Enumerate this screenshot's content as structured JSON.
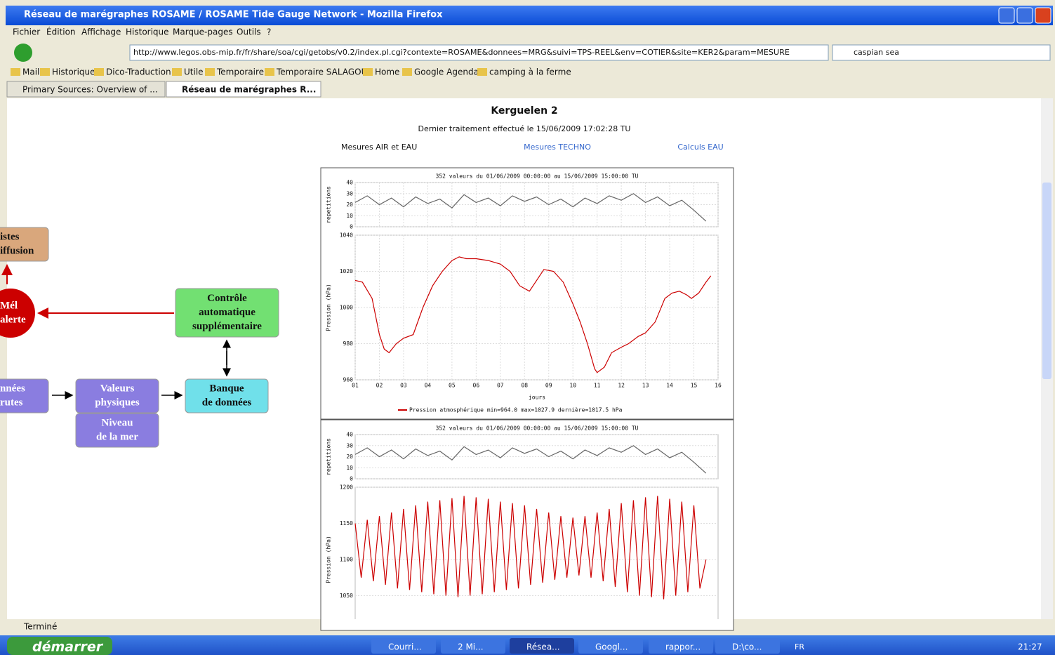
{
  "window": {
    "title": "Réseau de marégraphes ROSAME / ROSAME Tide Gauge Network - Mozilla Firefox"
  },
  "menu": [
    "Fichier",
    "Édition",
    "Affichage",
    "Historique",
    "Marque-pages",
    "Outils",
    "?"
  ],
  "url": "http://www.legos.obs-mip.fr/fr/share/soa/cgi/getobs/v0.2/index.pl.cgi?contexte=ROSAME&donnees=MRG&suivi=TPS-REEL&env=COTIER&site=KER2&param=MESURE",
  "search": "caspian sea",
  "bookmarks": [
    "Mail",
    "Historique",
    "Dico-Traduction",
    "Utile",
    "Temporaire",
    "Temporaire SALAGOU",
    "Home",
    "Google Agenda",
    "camping à la ferme"
  ],
  "tabs": [
    "Primary Sources: Overview of ...",
    "Réseau de marégraphes R..."
  ],
  "diagram": {
    "nodes": [
      {
        "lines": [
          "istes",
          "iffusion"
        ]
      },
      {
        "lines": [
          "Mél",
          "alerte"
        ]
      },
      {
        "lines": [
          "Contrôle",
          "automatique",
          "supplémentaire"
        ]
      },
      {
        "lines": [
          "nnées",
          "rutes"
        ]
      },
      {
        "lines": [
          "Valeurs",
          "physiques"
        ]
      },
      {
        "lines": [
          "Niveau",
          "de la mer"
        ]
      },
      {
        "lines": [
          "Banque",
          "de données"
        ]
      }
    ]
  },
  "page": {
    "title": "Kerguelen 2",
    "subtitle": "Dernier traitement effectué le 15/06/2009 17:02:28 TU",
    "links": [
      "Mesures AIR et EAU",
      "Mesures TECHNO",
      "Calculs EAU"
    ]
  },
  "charts": [
    {
      "type": "line",
      "title": "352 valeurs du 01/06/2009 00:00:00 au 15/06/2009 15:00:00 TU",
      "xlim": [
        1,
        16
      ],
      "xticks": [
        {
          "value": 1,
          "label": "01"
        },
        {
          "value": 2,
          "label": "02"
        },
        {
          "value": 3,
          "label": "03"
        },
        {
          "value": 4,
          "label": "04"
        },
        {
          "value": 5,
          "label": "05"
        },
        {
          "value": 6,
          "label": "06"
        },
        {
          "value": 7,
          "label": "07"
        },
        {
          "value": 8,
          "label": "08"
        },
        {
          "value": 9,
          "label": "09"
        },
        10,
        11,
        12,
        13,
        14,
        15,
        16
      ],
      "xlabel": "jours",
      "legend": "Pression atmosphérique min=964.0 max=1027.9 dernière=1017.5 hPa",
      "repetitions": {
        "ylabel": "repetitions",
        "ylim": [
          0,
          40
        ],
        "yticks": [
          0,
          10,
          20,
          30,
          40
        ],
        "color": "#666666",
        "x": [
          1,
          1.5,
          2,
          2.5,
          3,
          3.5,
          4,
          4.5,
          5,
          5.5,
          6,
          6.5,
          7,
          7.5,
          8,
          8.5,
          9,
          9.5,
          10,
          10.5,
          11,
          11.5,
          12,
          12.5,
          13,
          13.5,
          14,
          14.5,
          15,
          15.5
        ],
        "values": [
          22,
          28,
          20,
          26,
          18,
          27,
          21,
          25,
          17,
          29,
          22,
          26,
          19,
          28,
          23,
          27,
          20,
          25,
          18,
          26,
          21,
          28,
          24,
          30,
          22,
          27,
          19,
          24,
          15,
          5
        ]
      },
      "main": {
        "ylabel": "Pression (hPa)",
        "ylim": [
          960,
          1040
        ],
        "yticks": [
          960,
          980,
          1000,
          1020,
          1040
        ],
        "color": "#cc0000",
        "x": [
          1,
          1.3,
          1.7,
          2,
          2.2,
          2.4,
          2.7,
          3,
          3.4,
          3.8,
          4.2,
          4.6,
          5,
          5.3,
          5.6,
          6,
          6.5,
          7,
          7.4,
          7.8,
          8.2,
          8.5,
          8.8,
          9.2,
          9.6,
          10,
          10.3,
          10.6,
          10.9,
          11,
          11.3,
          11.6,
          12,
          12.3,
          12.7,
          13,
          13.4,
          13.8,
          14.1,
          14.4,
          14.7,
          14.9,
          15.2,
          15.5,
          15.7
        ],
        "values": [
          1015,
          1014,
          1005,
          985,
          977,
          975,
          980,
          983,
          985,
          1000,
          1012,
          1020,
          1026,
          1028,
          1027,
          1027,
          1026,
          1024,
          1020,
          1012,
          1009,
          1015,
          1021,
          1020,
          1014,
          1002,
          992,
          980,
          966,
          964,
          967,
          975,
          978,
          980,
          984,
          986,
          992,
          1005,
          1008,
          1009,
          1007,
          1005,
          1008,
          1014,
          1017.5
        ]
      }
    },
    {
      "type": "line",
      "title": "352 valeurs du 01/06/2009 00:00:00 au 15/06/2009 15:00:00 TU",
      "xlim": [
        1,
        16
      ],
      "repetitions": {
        "ylabel": "repetitions",
        "ylim": [
          0,
          40
        ],
        "yticks": [
          0,
          10,
          20,
          30,
          40
        ],
        "color": "#666666",
        "x": [
          1,
          1.5,
          2,
          2.5,
          3,
          3.5,
          4,
          4.5,
          5,
          5.5,
          6,
          6.5,
          7,
          7.5,
          8,
          8.5,
          9,
          9.5,
          10,
          10.5,
          11,
          11.5,
          12,
          12.5,
          13,
          13.5,
          14,
          14.5,
          15,
          15.5
        ],
        "values": [
          22,
          28,
          20,
          26,
          18,
          27,
          21,
          25,
          17,
          29,
          22,
          26,
          19,
          28,
          23,
          27,
          20,
          25,
          18,
          26,
          21,
          28,
          24,
          30,
          22,
          27,
          19,
          24,
          15,
          5
        ]
      },
      "main": {
        "ylabel": "Pression (hPa)",
        "ylim": [
          1000,
          1200
        ],
        "yticks": [
          1050,
          1100,
          1150,
          1200
        ],
        "color": "#cc0000",
        "x": [
          1,
          1.25,
          1.5,
          1.75,
          2,
          2.25,
          2.5,
          2.75,
          3,
          3.25,
          3.5,
          3.75,
          4,
          4.25,
          4.5,
          4.75,
          5,
          5.25,
          5.5,
          5.75,
          6,
          6.25,
          6.5,
          6.75,
          7,
          7.25,
          7.5,
          7.75,
          8,
          8.25,
          8.5,
          8.75,
          9,
          9.25,
          9.5,
          9.75,
          10,
          10.25,
          10.5,
          10.75,
          11,
          11.25,
          11.5,
          11.75,
          12,
          12.25,
          12.5,
          12.75,
          13,
          13.25,
          13.5,
          13.75,
          14,
          14.25,
          14.5,
          14.75,
          15,
          15.25,
          15.5
        ],
        "values": [
          1150,
          1075,
          1155,
          1070,
          1160,
          1065,
          1165,
          1060,
          1170,
          1058,
          1175,
          1055,
          1180,
          1052,
          1182,
          1050,
          1185,
          1048,
          1188,
          1050,
          1186,
          1052,
          1184,
          1055,
          1180,
          1058,
          1178,
          1060,
          1175,
          1065,
          1170,
          1068,
          1165,
          1072,
          1160,
          1075,
          1158,
          1078,
          1160,
          1075,
          1165,
          1070,
          1170,
          1062,
          1178,
          1055,
          1182,
          1050,
          1186,
          1048,
          1188,
          1045,
          1184,
          1050,
          1180,
          1055,
          1175,
          1060,
          1100
        ]
      }
    }
  ],
  "status": "Terminé",
  "taskbar": {
    "start": "démarrer",
    "items": [
      "Courri...",
      "2 Mi...",
      "Résea...",
      "Googl...",
      "rappor...",
      "D:\\co..."
    ],
    "lang": "FR",
    "clock": "21:27"
  }
}
